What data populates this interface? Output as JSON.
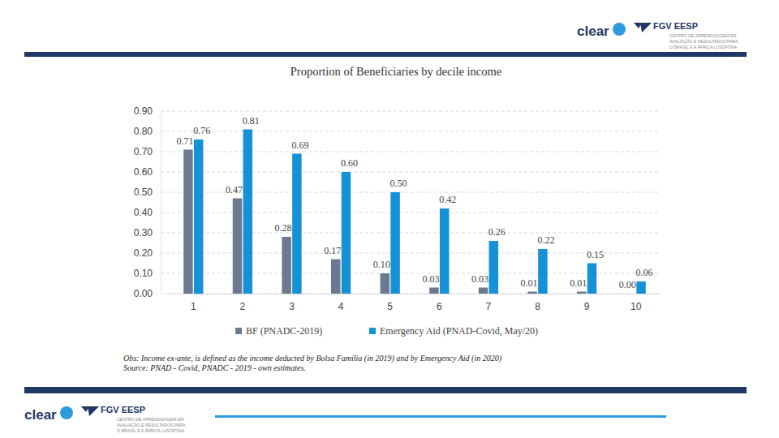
{
  "chart_data": {
    "type": "bar",
    "title": "Proportion of Beneficiaries by decile income",
    "categories": [
      "1",
      "2",
      "3",
      "4",
      "5",
      "6",
      "7",
      "8",
      "9",
      "10"
    ],
    "series": [
      {
        "name": "BF (PNADC-2019)",
        "color": "#6b7a8f",
        "values": [
          0.71,
          0.47,
          0.28,
          0.17,
          0.1,
          0.03,
          0.03,
          0.01,
          0.01,
          0.0
        ],
        "value_labels": [
          "0.71",
          "0.47",
          "0.28",
          "0.17",
          "0.10",
          "0.03",
          "0.03",
          "0.01",
          "0.01",
          "0.00"
        ]
      },
      {
        "name": "Emergency Aid (PNAD-Covid, May/20)",
        "color": "#1591d6",
        "values": [
          0.76,
          0.81,
          0.69,
          0.6,
          0.5,
          0.42,
          0.26,
          0.22,
          0.15,
          0.06
        ],
        "value_labels": [
          "0.76",
          "0.81",
          "0.69",
          "0.60",
          "0.50",
          "0.42",
          "0.26",
          "0.22",
          "0.15",
          "0.06"
        ]
      }
    ],
    "ylim": [
      0,
      0.9
    ],
    "yticks": [
      {
        "value": 0,
        "label": "0.00"
      },
      {
        "value": 0.1,
        "label": "0.10"
      },
      {
        "value": 0.2,
        "label": "0.20"
      },
      {
        "value": 0.3,
        "label": "0.30"
      },
      {
        "value": 0.4,
        "label": "0.40"
      },
      {
        "value": 0.5,
        "label": "0.50"
      },
      {
        "value": 0.6,
        "label": "0.60"
      },
      {
        "value": 0.7,
        "label": "0.70"
      },
      {
        "value": 0.8,
        "label": "0.80"
      },
      {
        "value": 0.9,
        "label": "0.90"
      }
    ],
    "grid": true,
    "legend": "bottom",
    "data_labels": true,
    "notes": [
      "Obs: Income ex-ante, is defined as the income deducted by Bolsa Família (in 2019) and by Emergency Aid (in 2020)",
      "Source: PNAD - Covid, PNADC - 2019 - own estimates."
    ]
  },
  "logos": {
    "clear": "clear",
    "fgv": "FGV EESP",
    "tagline": [
      "CENTRO DE APRENDIZAGEM EM",
      "AVALIAÇÃO E RESULTADOS PARA",
      "O BRASIL E A ÁFRICA LUSÓFONA"
    ]
  }
}
